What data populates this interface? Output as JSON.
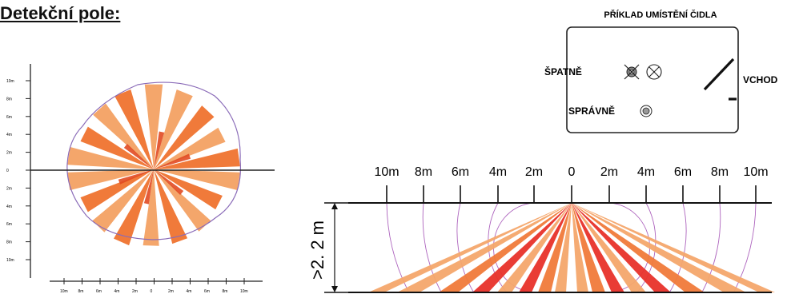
{
  "heading": "Detekční pole:",
  "top_view": {
    "y_ticks": [
      "10m",
      "8m",
      "6m",
      "4m",
      "2m",
      "0",
      "2m",
      "4m",
      "6m",
      "8m",
      "10m"
    ],
    "x_ticks": [
      "10m",
      "8m",
      "6m",
      "4m",
      "2m",
      "0",
      "2m",
      "4m",
      "6m",
      "8m",
      "10m"
    ],
    "beam_colors": {
      "light": "#f4a66b",
      "dark": "#f07a3a",
      "inner": "#e14a22"
    },
    "outline_color": "#8a6bb8"
  },
  "placement": {
    "title": "PŘÍKLAD UMÍSTĚNÍ ČIDLA",
    "wrong_label": "ŠPATNĚ",
    "correct_label": "SPRÁVNĚ",
    "entrance_label": "VCHOD",
    "icons": [
      "sensor-crossed-icon",
      "sensor-crossed-icon",
      "sensor-ok-icon"
    ]
  },
  "side_view": {
    "distance_labels": [
      "10m",
      "8m",
      "6m",
      "4m",
      "2m",
      "0",
      "2m",
      "4m",
      "6m",
      "8m",
      "10m"
    ],
    "height_label": ">2. 2 m",
    "beam_colors": {
      "light": "#f4a66b",
      "mid": "#f07a3a",
      "red": "#e8322a"
    },
    "arc_color": "#9a3fae"
  }
}
